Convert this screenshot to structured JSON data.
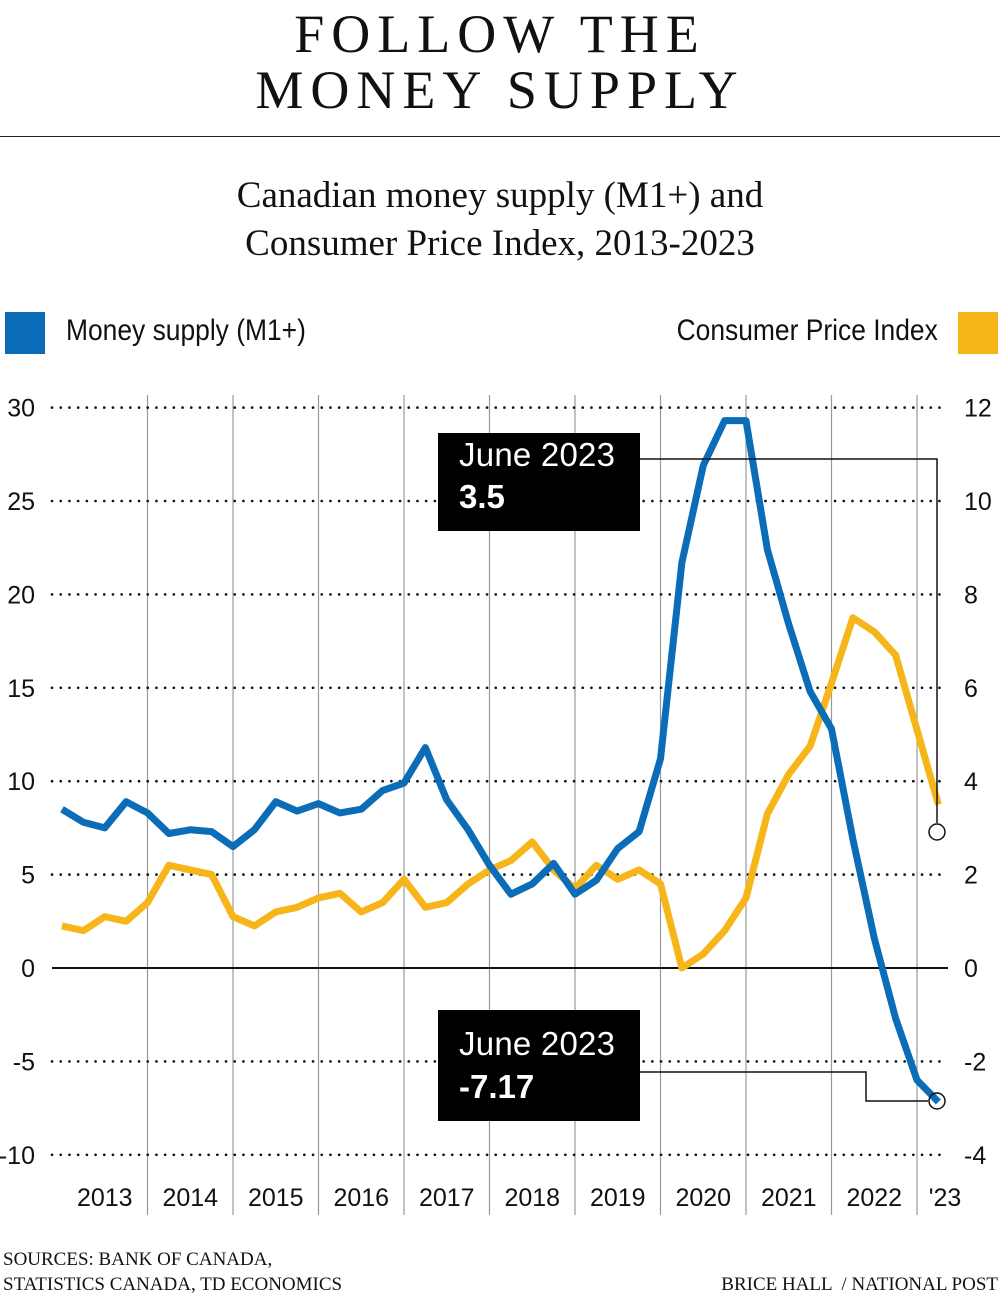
{
  "header": {
    "title_line1": "FOLLOW THE",
    "title_line2": "MONEY SUPPLY",
    "subtitle_line1": "Canadian money supply (M1+) and",
    "subtitle_line2": "Consumer Price Index, 2013-2023"
  },
  "footer": {
    "sources_line1": "SOURCES: BANK OF CANADA,",
    "sources_line2": "STATISTICS CANADA, TD ECONOMICS",
    "credit": "BRICE HALL  / NATIONAL POST"
  },
  "chart_data": {
    "type": "line",
    "title": "Canadian money supply (M1+) and Consumer Price Index, 2013-2023",
    "x_tick_labels": [
      "2013",
      "2014",
      "2015",
      "2016",
      "2017",
      "2018",
      "2019",
      "2020",
      "2021",
      "2022",
      "'23"
    ],
    "xlim": [
      2013,
      2023.25
    ],
    "y_left": {
      "ticks": [
        30,
        25,
        20,
        15,
        10,
        5,
        0,
        -5,
        -10
      ],
      "ylim": [
        -10,
        30
      ]
    },
    "y_right": {
      "ticks": [
        12,
        10,
        8,
        6,
        4,
        2,
        0,
        -2,
        -4
      ],
      "ylim": [
        -4,
        12
      ]
    },
    "grid": "horizontal dotted, vertical year lines",
    "legend": "top",
    "x": [
      2013,
      2013.25,
      2013.5,
      2013.75,
      2014,
      2014.25,
      2014.5,
      2014.75,
      2015,
      2015.25,
      2015.5,
      2015.75,
      2016,
      2016.25,
      2016.5,
      2016.75,
      2017,
      2017.25,
      2017.5,
      2017.75,
      2018,
      2018.25,
      2018.5,
      2018.75,
      2019,
      2019.25,
      2019.5,
      2019.75,
      2020,
      2020.25,
      2020.5,
      2020.75,
      2021,
      2021.25,
      2021.5,
      2021.75,
      2022,
      2022.25,
      2022.5,
      2022.75,
      2023,
      2023.25
    ],
    "series": [
      {
        "name": "Money supply (M1+)",
        "axis": "left",
        "color": "#0b6cb8",
        "values": [
          8.5,
          7.8,
          7.5,
          8.9,
          8.3,
          7.2,
          7.4,
          7.3,
          6.5,
          7.4,
          8.9,
          8.4,
          8.8,
          8.3,
          8.5,
          9.5,
          9.9,
          11.8,
          9.0,
          7.4,
          5.5,
          3.95,
          4.5,
          5.6,
          3.95,
          4.7,
          6.4,
          7.3,
          11.2,
          21.7,
          26.9,
          29.3,
          29.3,
          22.4,
          18.4,
          14.8,
          12.8,
          6.9,
          1.6,
          -2.7,
          -6.0,
          -7.17
        ]
      },
      {
        "name": "Consumer Price Index",
        "axis": "right",
        "color": "#f6b519",
        "values": [
          0.9,
          0.8,
          1.1,
          1.0,
          1.4,
          2.2,
          2.1,
          2.0,
          1.1,
          0.9,
          1.2,
          1.3,
          1.5,
          1.6,
          1.2,
          1.4,
          1.9,
          1.3,
          1.4,
          1.8,
          2.1,
          2.3,
          2.7,
          2.1,
          1.7,
          2.2,
          1.9,
          2.1,
          1.8,
          0.0,
          0.3,
          0.8,
          1.5,
          3.3,
          4.15,
          4.75,
          6.1,
          7.5,
          7.2,
          6.7,
          5.1,
          3.5
        ]
      }
    ],
    "annotations": [
      {
        "series": "Consumer Price Index",
        "label": "June 2023",
        "value": "3.5"
      },
      {
        "series": "Money supply (M1+)",
        "label": "June 2023",
        "value": "-7.17"
      }
    ]
  }
}
